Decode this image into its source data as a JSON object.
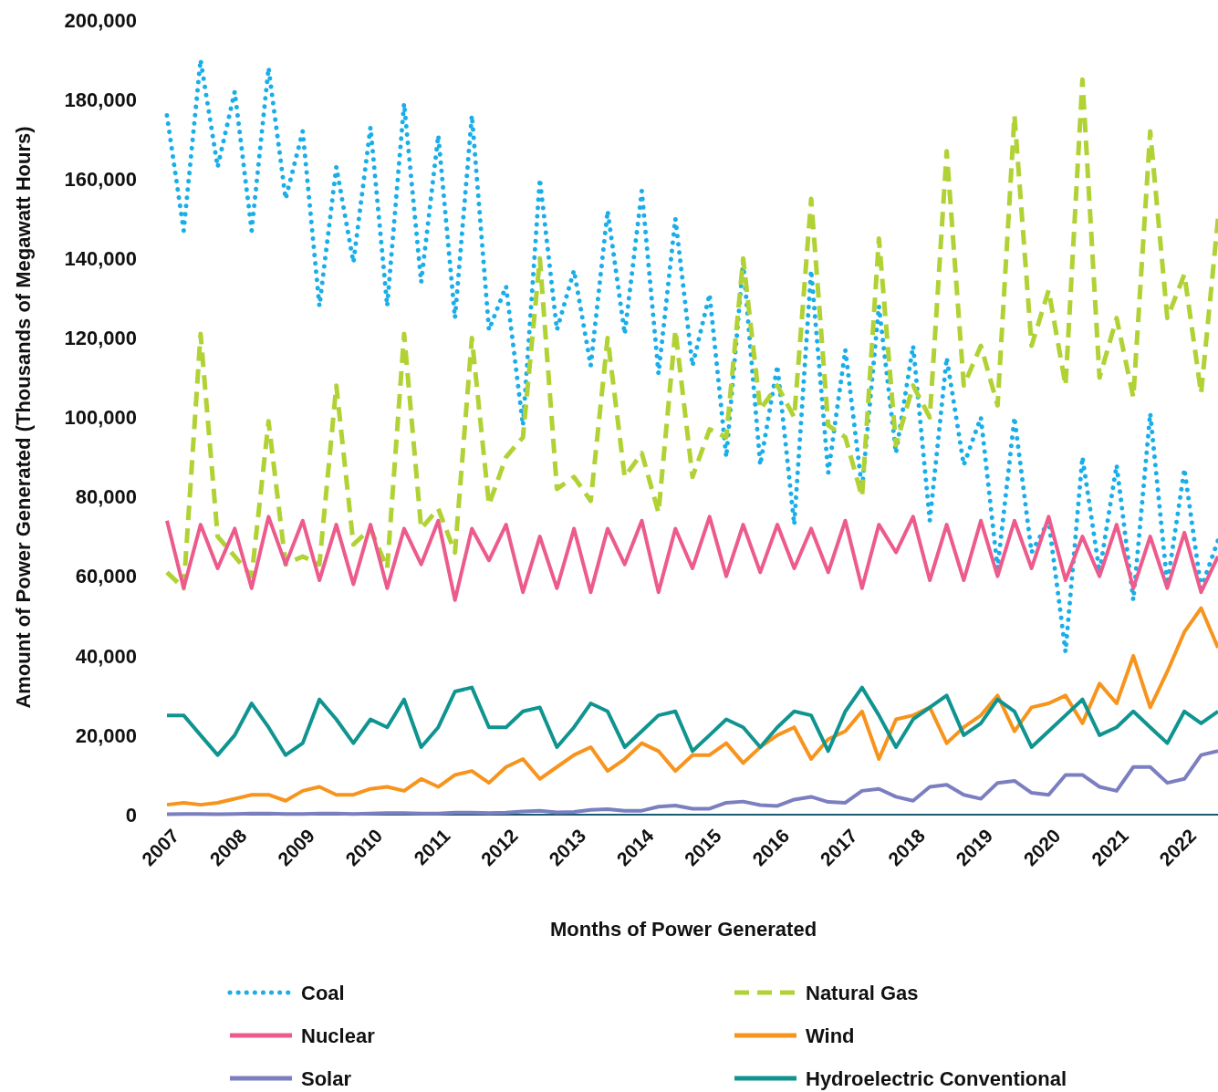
{
  "chart_data": {
    "type": "line",
    "xlabel": "Months of Power Generated",
    "ylabel": "Amount of Power Generated (Thousands of Megawatt Hours)",
    "x": [
      "2007-01",
      "2007-04",
      "2007-07",
      "2007-10",
      "2008-01",
      "2008-04",
      "2008-07",
      "2008-10",
      "2009-01",
      "2009-04",
      "2009-07",
      "2009-10",
      "2010-01",
      "2010-04",
      "2010-07",
      "2010-10",
      "2011-01",
      "2011-04",
      "2011-07",
      "2011-10",
      "2012-01",
      "2012-04",
      "2012-07",
      "2012-10",
      "2013-01",
      "2013-04",
      "2013-07",
      "2013-10",
      "2014-01",
      "2014-04",
      "2014-07",
      "2014-10",
      "2015-01",
      "2015-04",
      "2015-07",
      "2015-10",
      "2016-01",
      "2016-04",
      "2016-07",
      "2016-10",
      "2017-01",
      "2017-04",
      "2017-07",
      "2017-10",
      "2018-01",
      "2018-04",
      "2018-07",
      "2018-10",
      "2019-01",
      "2019-04",
      "2019-07",
      "2019-10",
      "2020-01",
      "2020-04",
      "2020-07",
      "2020-10",
      "2021-01",
      "2021-04",
      "2021-07",
      "2021-10",
      "2022-01",
      "2022-04",
      "2022-07"
    ],
    "xlim": [
      "2007-01",
      "2022-07"
    ],
    "xticks": [
      {
        "value": "2007-01",
        "label": "2007"
      },
      {
        "value": "2008-01",
        "label": "2008"
      },
      {
        "value": "2009-01",
        "label": "2009"
      },
      {
        "value": "2010-01",
        "label": "2010"
      },
      {
        "value": "2011-01",
        "label": "2011"
      },
      {
        "value": "2012-01",
        "label": "2012"
      },
      {
        "value": "2013-01",
        "label": "2013"
      },
      {
        "value": "2014-01",
        "label": "2014"
      },
      {
        "value": "2015-01",
        "label": "2015"
      },
      {
        "value": "2016-01",
        "label": "2016"
      },
      {
        "value": "2017-01",
        "label": "2017"
      },
      {
        "value": "2018-01",
        "label": "2018"
      },
      {
        "value": "2019-01",
        "label": "2019"
      },
      {
        "value": "2020-01",
        "label": "2020"
      },
      {
        "value": "2021-01",
        "label": "2021"
      },
      {
        "value": "2022-01",
        "label": "2022"
      }
    ],
    "ylim": [
      0,
      200000
    ],
    "yticks": [
      {
        "value": 0,
        "label": "0"
      },
      {
        "value": 20000,
        "label": "20,000"
      },
      {
        "value": 40000,
        "label": "40,000"
      },
      {
        "value": 60000,
        "label": "60,000"
      },
      {
        "value": 80000,
        "label": "80,000"
      },
      {
        "value": 100000,
        "label": "100,000"
      },
      {
        "value": 120000,
        "label": "120,000"
      },
      {
        "value": 140000,
        "label": "140,000"
      },
      {
        "value": 160000,
        "label": "160,000"
      },
      {
        "value": 180000,
        "label": "180,000"
      },
      {
        "value": 200000,
        "label": "200,000"
      }
    ],
    "legend": "bottom",
    "series": [
      {
        "name": "Coal",
        "color": "#1aaee8",
        "line_style": "dotted",
        "values": [
          176000,
          147000,
          190000,
          163000,
          182000,
          147000,
          188000,
          155000,
          172000,
          128000,
          163000,
          139000,
          173000,
          128000,
          179000,
          134000,
          171000,
          125000,
          176000,
          122000,
          133000,
          98000,
          160000,
          122000,
          137000,
          113000,
          152000,
          121000,
          157000,
          111000,
          150000,
          113000,
          131000,
          90000,
          139000,
          88000,
          113000,
          73000,
          137000,
          86000,
          117000,
          82000,
          128000,
          91000,
          118000,
          74000,
          115000,
          88000,
          100000,
          62000,
          100000,
          66000,
          74000,
          41000,
          90000,
          61000,
          88000,
          54000,
          101000,
          58000,
          87000,
          57000,
          69000
        ]
      },
      {
        "name": "Natural Gas",
        "color": "#b1d235",
        "line_style": "dashed",
        "values": [
          61000,
          57000,
          121000,
          70000,
          65000,
          60000,
          99000,
          63000,
          65000,
          63000,
          108000,
          68000,
          72000,
          62000,
          121000,
          72000,
          77000,
          66000,
          120000,
          78000,
          90000,
          95000,
          140000,
          82000,
          85000,
          79000,
          120000,
          85000,
          91000,
          76000,
          122000,
          85000,
          97000,
          95000,
          140000,
          102000,
          108000,
          100000,
          155000,
          98000,
          95000,
          80000,
          145000,
          93000,
          108000,
          100000,
          167000,
          108000,
          118000,
          103000,
          176000,
          118000,
          132000,
          108000,
          185000,
          110000,
          125000,
          105000,
          172000,
          125000,
          136000,
          106000,
          150000
        ]
      },
      {
        "name": "Nuclear",
        "color": "#ec5b8c",
        "line_style": "solid",
        "values": [
          74000,
          57000,
          73000,
          62000,
          72000,
          57000,
          75000,
          63000,
          74000,
          59000,
          73000,
          58000,
          73000,
          57000,
          72000,
          63000,
          74000,
          54000,
          72000,
          64000,
          73000,
          56000,
          70000,
          57000,
          72000,
          56000,
          72000,
          63000,
          74000,
          56000,
          72000,
          62000,
          75000,
          60000,
          73000,
          61000,
          73000,
          62000,
          72000,
          61000,
          74000,
          57000,
          73000,
          66000,
          75000,
          59000,
          73000,
          59000,
          74000,
          60000,
          74000,
          62000,
          75000,
          59000,
          70000,
          60000,
          73000,
          57000,
          70000,
          57000,
          71000,
          56000,
          65000
        ]
      },
      {
        "name": "Wind",
        "color": "#f7941d",
        "line_style": "solid",
        "values": [
          2500,
          3000,
          2500,
          3000,
          4000,
          5000,
          5000,
          3500,
          6000,
          7000,
          5000,
          5000,
          6500,
          7000,
          6000,
          9000,
          7000,
          10000,
          11000,
          8000,
          12000,
          14000,
          9000,
          12000,
          15000,
          17000,
          11000,
          14000,
          18000,
          16000,
          11000,
          15000,
          15000,
          18000,
          13000,
          17000,
          20000,
          22000,
          14000,
          19000,
          21000,
          26000,
          14000,
          24000,
          25000,
          27000,
          18000,
          22000,
          25000,
          30000,
          21000,
          27000,
          28000,
          30000,
          23000,
          33000,
          28000,
          40000,
          27000,
          36000,
          46000,
          52000,
          42000
        ]
      },
      {
        "name": "Solar",
        "color": "#7b7fc0",
        "line_style": "solid",
        "values": [
          100,
          200,
          200,
          100,
          200,
          300,
          300,
          200,
          200,
          300,
          300,
          200,
          300,
          400,
          400,
          300,
          300,
          500,
          500,
          400,
          500,
          800,
          1000,
          600,
          700,
          1200,
          1400,
          1000,
          1000,
          2000,
          2300,
          1500,
          1500,
          3000,
          3300,
          2400,
          2200,
          3800,
          4500,
          3200,
          3000,
          6000,
          6500,
          4500,
          3500,
          7000,
          7500,
          5000,
          4000,
          8000,
          8500,
          5500,
          5000,
          10000,
          10000,
          7000,
          6000,
          12000,
          12000,
          8000,
          9000,
          15000,
          16000
        ]
      },
      {
        "name": "Hydroelectric Conventional",
        "color": "#0f9490",
        "line_style": "solid",
        "values": [
          25000,
          25000,
          20000,
          15000,
          20000,
          28000,
          22000,
          15000,
          18000,
          29000,
          24000,
          18000,
          24000,
          22000,
          29000,
          17000,
          22000,
          31000,
          32000,
          22000,
          22000,
          26000,
          27000,
          17000,
          22000,
          28000,
          26000,
          17000,
          21000,
          25000,
          26000,
          16000,
          20000,
          24000,
          22000,
          17000,
          22000,
          26000,
          25000,
          16000,
          26000,
          32000,
          25000,
          17000,
          24000,
          27000,
          30000,
          20000,
          23000,
          29000,
          26000,
          17000,
          21000,
          25000,
          29000,
          20000,
          22000,
          26000,
          22000,
          18000,
          26000,
          23000,
          26000
        ]
      }
    ]
  }
}
